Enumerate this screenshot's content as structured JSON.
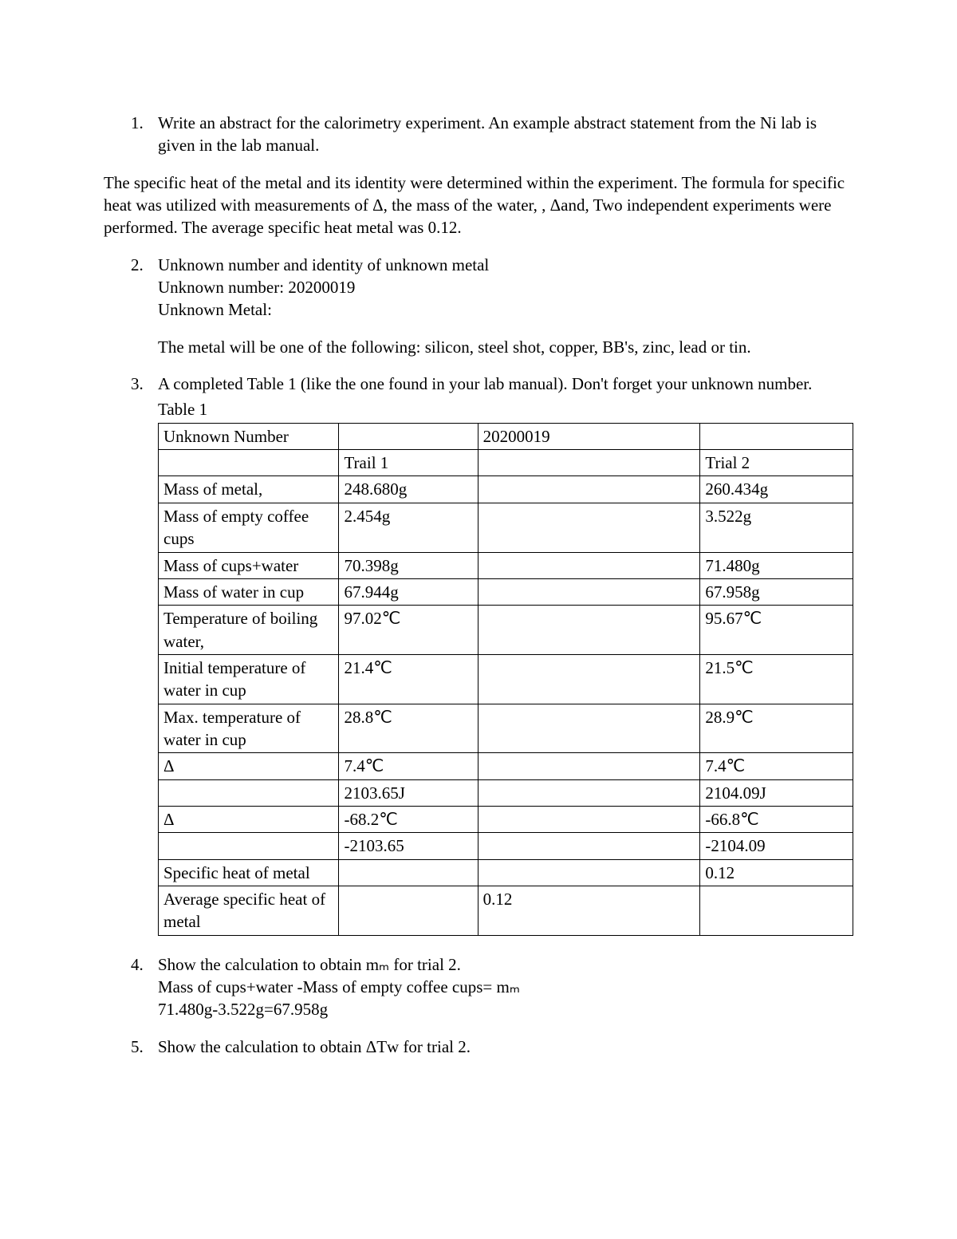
{
  "q1": {
    "prompt": "Write an abstract for the calorimetry experiment. An example abstract statement from the Ni lab is given in the lab manual.",
    "answer": "The specific heat of the metal and its identity were determined within the experiment. The formula for specific heat was utilized with measurements of Δ, the mass of the water, , Δand, Two independent experiments were performed. The average specific heat metal was 0.12."
  },
  "q2": {
    "prompt": "Unknown number and identity of unknown metal",
    "line1": "Unknown number: 20200019",
    "line2": "Unknown Metal:",
    "line3": "The metal will be one of the following: silicon, steel shot, copper, BB's, zinc, lead or tin."
  },
  "q3": {
    "prompt": "A completed Table 1 (like the one found in your lab manual). Don't forget your unknown number.",
    "caption": "Table 1",
    "table": {
      "columns": 4,
      "rows": [
        [
          "Unknown Number",
          "",
          "20200019",
          ""
        ],
        [
          "",
          "Trail 1",
          "",
          "Trial 2"
        ],
        [
          "Mass of metal,",
          "248.680g",
          "",
          "260.434g"
        ],
        [
          "Mass of empty coffee cups",
          "2.454g",
          "",
          "3.522g"
        ],
        [
          "Mass of cups+water",
          "70.398g",
          "",
          "71.480g"
        ],
        [
          "Mass of water in cup",
          "67.944g",
          "",
          "67.958g"
        ],
        [
          "Temperature of boiling water,",
          "97.02℃",
          "",
          "95.67℃"
        ],
        [
          "Initial temperature of water in cup",
          "21.4℃",
          "",
          "21.5℃"
        ],
        [
          "Max. temperature of water in cup",
          "28.8℃",
          "",
          "28.9℃"
        ],
        [
          "Δ",
          "7.4℃",
          "",
          "7.4℃"
        ],
        [
          "",
          "2103.65J",
          "",
          "2104.09J"
        ],
        [
          "Δ",
          "-68.2℃",
          "",
          "-66.8℃"
        ],
        [
          "",
          "-2103.65",
          "",
          "-2104.09"
        ],
        [
          "Specific heat of metal",
          "",
          "",
          "0.12"
        ],
        [
          "Average specific heat of metal",
          "",
          "0.12",
          ""
        ]
      ]
    }
  },
  "q4": {
    "prompt": "Show the calculation to obtain mₘ for trial 2.",
    "line1": "Mass of cups+water -Mass of empty coffee cups= mₘ",
    "line2": "71.480g-3.522g=67.958g"
  },
  "q5": {
    "prompt": "Show the calculation to obtain ΔTᴡ for trial 2."
  },
  "nums": {
    "n1": "1.",
    "n2": "2.",
    "n3": "3.",
    "n4": "4.",
    "n5": "5."
  }
}
